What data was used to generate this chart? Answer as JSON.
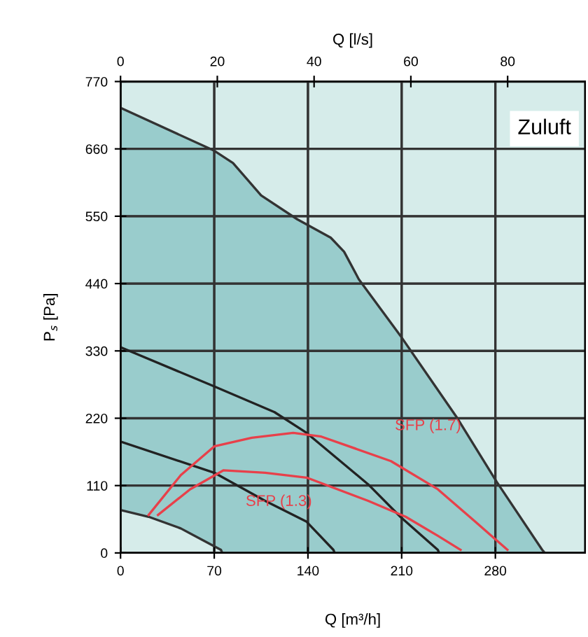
{
  "chart_data": {
    "type": "line",
    "xlabel": "Q [m³/h]",
    "x2label": "Q [l/s]",
    "ylabel": "P$_{s}$ [Pa]",
    "xlim": [
      0,
      347
    ],
    "xticks": [
      0,
      70,
      140,
      210,
      280
    ],
    "x2lim": [
      0,
      96
    ],
    "x2ticks": [
      0,
      20,
      40,
      60,
      80
    ],
    "ylim": [
      0,
      770
    ],
    "yticks": [
      0,
      110,
      220,
      330,
      440,
      550,
      660,
      770
    ],
    "grid": true,
    "legend": false,
    "marker": "none",
    "line_style": "solid",
    "series": [
      {
        "type": "area",
        "color": "#99cccc",
        "x": [
          0,
          70,
          84,
          105,
          132,
          157,
          167,
          178,
          209,
          251,
          281,
          315,
          317
        ],
        "values": [
          727,
          657,
          637,
          584,
          545,
          515,
          492,
          447,
          355,
          222,
          116,
          5,
          0
        ]
      },
      {
        "color": "#222222",
        "x": [
          0,
          70,
          115,
          139,
          185,
          209,
          237,
          238
        ],
        "values": [
          336,
          272,
          230,
          196,
          112,
          59,
          5,
          0
        ]
      },
      {
        "color": "#222222",
        "x": [
          0,
          70,
          108,
          139,
          159,
          160
        ],
        "values": [
          182,
          131,
          85,
          51,
          5,
          0
        ]
      },
      {
        "type": "area",
        "color": "#d6ecea",
        "x": [
          0,
          21,
          45,
          75,
          76
        ],
        "values": [
          70,
          59,
          40,
          5,
          0
        ]
      },
      {
        "name": "SFP (1.7)",
        "color": "#e8404a",
        "x": [
          21,
          45,
          70,
          98,
          129,
          150,
          202,
          237,
          265,
          289
        ],
        "values": [
          62,
          127,
          174,
          188,
          196,
          190,
          150,
          104,
          51,
          5
        ]
      },
      {
        "name": "SFP (1.3)",
        "color": "#e8404a",
        "x": [
          28,
          52,
          77,
          108,
          139,
          185,
          213,
          237,
          254
        ],
        "values": [
          62,
          104,
          135,
          131,
          123,
          85,
          59,
          28,
          5
        ]
      }
    ],
    "annotations": [
      "Zuluft"
    ]
  }
}
